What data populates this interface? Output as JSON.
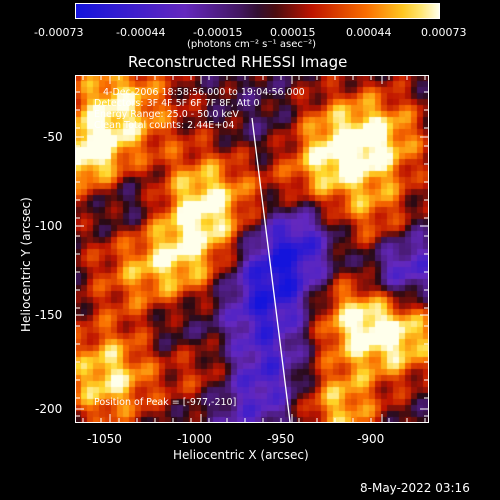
{
  "colorbar": {
    "tick_labels": [
      "-0.00073",
      "-0.00044",
      "-0.00015",
      "0.00015",
      "0.00044",
      "0.00073"
    ],
    "unit_label": "(photons cm⁻² s⁻¹ asec⁻²)"
  },
  "plot": {
    "title": "Reconstructed RHESSI Image",
    "info_lines": [
      "4-Dec-2006 18:58:56.000 to 19:04:56.000",
      "Detectors: 3F 4F 5F 6F 7F 8F, Att 0",
      "Energy Range: 25.0 - 50.0 keV",
      "Clean      Total counts: 2.44E+04"
    ],
    "peak_label": "Position of Peak = [-977,-210]",
    "x_axis": {
      "label": "Heliocentric X (arcsec)",
      "ticks": [
        "-1050",
        "-1000",
        "-950",
        "-900"
      ]
    },
    "y_axis": {
      "label": "Heliocentric Y (arcsec)",
      "ticks": [
        "-50",
        "-100",
        "-150",
        "-200"
      ]
    }
  },
  "footer": {
    "timestamp": "8-May-2022 03:16"
  },
  "colors": {
    "background": "#000000",
    "text": "#ffffff",
    "limb": "#ffffff"
  }
}
